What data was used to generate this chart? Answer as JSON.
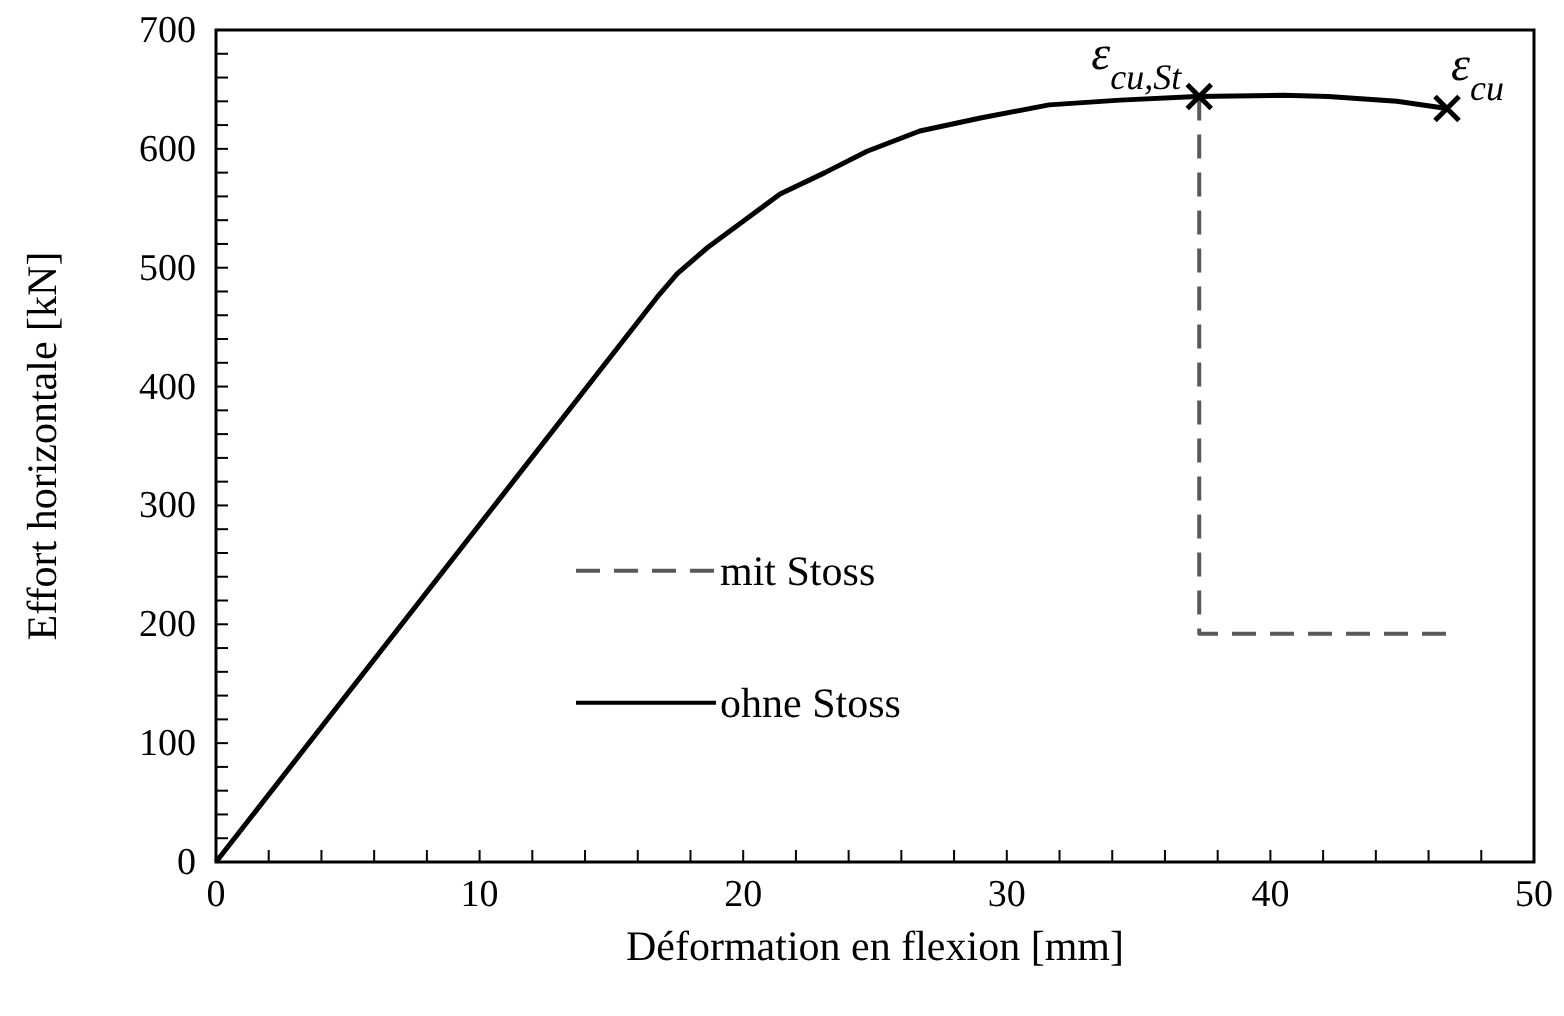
{
  "chart_data": {
    "type": "line",
    "xlabel": "Déformation en flexion [mm]",
    "ylabel": "Effort horizontale [kN]",
    "xlim": [
      0,
      50
    ],
    "ylim": [
      0,
      700
    ],
    "xticks": [
      0,
      {
        "value": 2,
        "label": null
      },
      {
        "value": 4,
        "label": null
      },
      {
        "value": 6,
        "label": null
      },
      {
        "value": 8,
        "label": null
      },
      10,
      {
        "value": 12,
        "label": null
      },
      {
        "value": 14,
        "label": null
      },
      {
        "value": 16,
        "label": null
      },
      {
        "value": 18,
        "label": null
      },
      20,
      {
        "value": 22,
        "label": null
      },
      {
        "value": 24,
        "label": null
      },
      {
        "value": 26,
        "label": null
      },
      {
        "value": 28,
        "label": null
      },
      30,
      {
        "value": 32,
        "label": null
      },
      {
        "value": 34,
        "label": null
      },
      {
        "value": 36,
        "label": null
      },
      {
        "value": 38,
        "label": null
      },
      40,
      {
        "value": 42,
        "label": null
      },
      {
        "value": 44,
        "label": null
      },
      {
        "value": 46,
        "label": null
      },
      {
        "value": 48,
        "label": null
      },
      50
    ],
    "yticks": [
      0,
      {
        "value": 20,
        "label": null
      },
      {
        "value": 40,
        "label": null
      },
      {
        "value": 60,
        "label": null
      },
      {
        "value": 80,
        "label": null
      },
      100,
      {
        "value": 120,
        "label": null
      },
      {
        "value": 140,
        "label": null
      },
      {
        "value": 160,
        "label": null
      },
      {
        "value": 180,
        "label": null
      },
      200,
      {
        "value": 220,
        "label": null
      },
      {
        "value": 240,
        "label": null
      },
      {
        "value": 260,
        "label": null
      },
      {
        "value": 280,
        "label": null
      },
      300,
      {
        "value": 320,
        "label": null
      },
      {
        "value": 340,
        "label": null
      },
      {
        "value": 360,
        "label": null
      },
      {
        "value": 380,
        "label": null
      },
      400,
      {
        "value": 420,
        "label": null
      },
      {
        "value": 440,
        "label": null
      },
      {
        "value": 460,
        "label": null
      },
      {
        "value": 480,
        "label": null
      },
      500,
      {
        "value": 520,
        "label": null
      },
      {
        "value": 540,
        "label": null
      },
      {
        "value": 560,
        "label": null
      },
      {
        "value": 580,
        "label": null
      },
      600,
      {
        "value": 620,
        "label": null
      },
      {
        "value": 640,
        "label": null
      },
      {
        "value": 660,
        "label": null
      },
      {
        "value": 680,
        "label": null
      },
      700
    ],
    "grid": false,
    "legend": "left",
    "series": [
      {
        "name": "mit Stoss",
        "line_style": "dashed",
        "marker": "none",
        "color": "#595959",
        "x": [
          37.3,
          37.3,
          46.8
        ],
        "values": [
          644,
          192,
          192
        ]
      },
      {
        "name": "ohne Stoss",
        "line_style": "solid",
        "marker": "none",
        "color": "#000000",
        "x": [
          0,
          16.8,
          17.5,
          18.65,
          20.0,
          21.4,
          23.1,
          24.7,
          26.7,
          29.0,
          31.6,
          34.3,
          37.2,
          40.5,
          42.2,
          44.8,
          46.7
        ],
        "values": [
          0,
          477,
          495,
          517,
          539,
          562,
          580,
          598,
          615,
          626,
          637,
          641,
          644,
          645,
          644,
          640,
          634
        ]
      },
      {
        "type": "scatter",
        "marker": "cross",
        "color": "#000000",
        "x": [
          37.3,
          46.7
        ],
        "values": [
          644,
          634
        ]
      }
    ],
    "annotations": [
      {
        "text": "ε$_{cu,St}$",
        "x": 37.3,
        "y": 644
      },
      {
        "text": "ε$_{cu}$",
        "x": 46.7,
        "y": 634
      }
    ]
  }
}
